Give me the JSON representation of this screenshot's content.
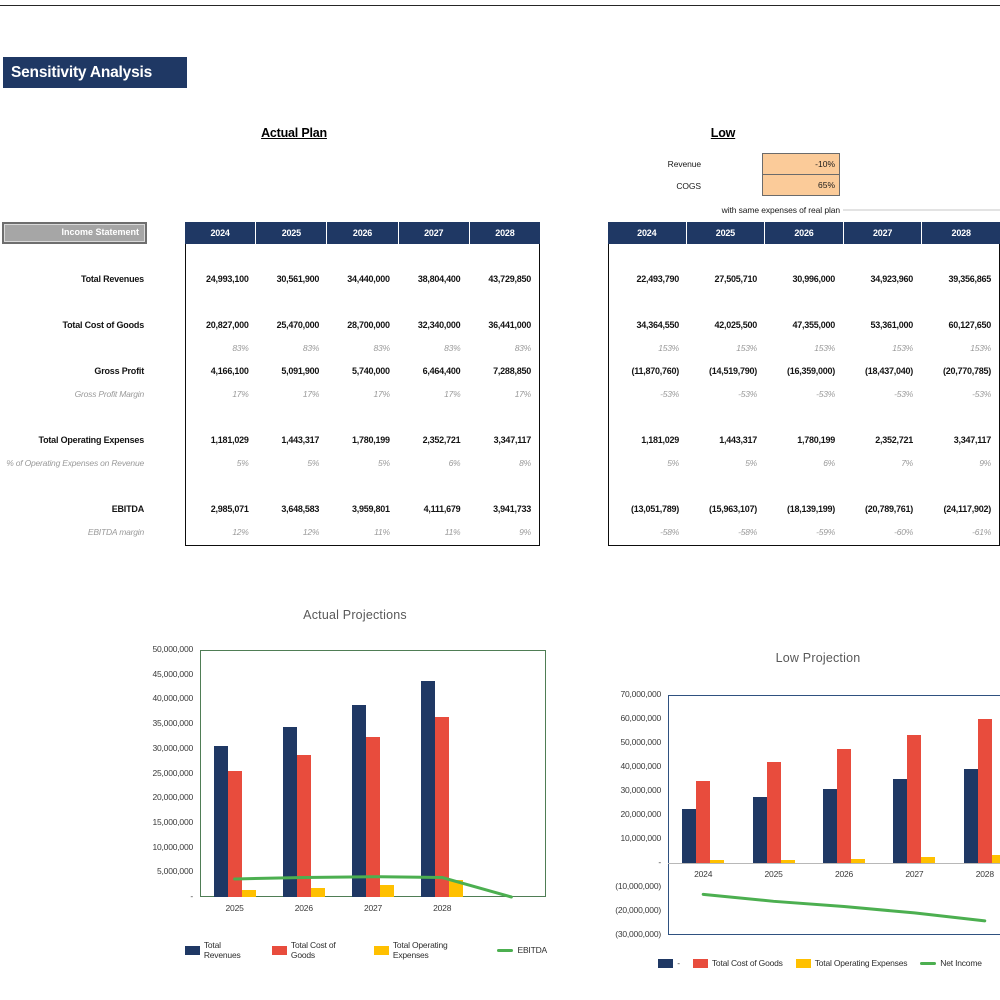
{
  "banner": {
    "title": "Sensitivity Analysis"
  },
  "scenarios": {
    "actual": {
      "heading": "Actual Plan"
    },
    "low": {
      "heading": "Low",
      "assumptions": [
        {
          "label": "Revenue",
          "value": "-10%"
        },
        {
          "label": "COGS",
          "value": "65%"
        }
      ],
      "note": "with same expenses of real plan"
    }
  },
  "income_statement": {
    "box_label": "Income Statement",
    "years": [
      "2024",
      "2025",
      "2026",
      "2027",
      "2028"
    ],
    "rows": [
      {
        "label": "Total Revenues",
        "kind": "value",
        "gap_before": false,
        "actual": [
          "24,993,100",
          "30,561,900",
          "34,440,000",
          "38,804,400",
          "43,729,850"
        ],
        "low": [
          "22,493,790",
          "27,505,710",
          "30,996,000",
          "34,923,960",
          "39,356,865"
        ]
      },
      {
        "label": "Total Cost of Goods",
        "kind": "value",
        "gap_before": true,
        "actual": [
          "20,827,000",
          "25,470,000",
          "28,700,000",
          "32,340,000",
          "36,441,000"
        ],
        "low": [
          "34,364,550",
          "42,025,500",
          "47,355,000",
          "53,361,000",
          "60,127,650"
        ]
      },
      {
        "label": "",
        "kind": "pct",
        "gap_before": false,
        "actual": [
          "83%",
          "83%",
          "83%",
          "83%",
          "83%"
        ],
        "low": [
          "153%",
          "153%",
          "153%",
          "153%",
          "153%"
        ]
      },
      {
        "label": "Gross Profit",
        "kind": "value",
        "gap_before": false,
        "actual": [
          "4,166,100",
          "5,091,900",
          "5,740,000",
          "6,464,400",
          "7,288,850"
        ],
        "low": [
          "(11,870,760)",
          "(14,519,790)",
          "(16,359,000)",
          "(18,437,040)",
          "(20,770,785)"
        ]
      },
      {
        "label": "Gross Profit Margin",
        "kind": "pct",
        "gap_before": false,
        "actual": [
          "17%",
          "17%",
          "17%",
          "17%",
          "17%"
        ],
        "low": [
          "-53%",
          "-53%",
          "-53%",
          "-53%",
          "-53%"
        ]
      },
      {
        "label": "Total Operating Expenses",
        "kind": "value",
        "gap_before": true,
        "actual": [
          "1,181,029",
          "1,443,317",
          "1,780,199",
          "2,352,721",
          "3,347,117"
        ],
        "low": [
          "1,181,029",
          "1,443,317",
          "1,780,199",
          "2,352,721",
          "3,347,117"
        ]
      },
      {
        "label": "% of Operating Expenses on Revenue",
        "kind": "pct",
        "gap_before": false,
        "actual": [
          "5%",
          "5%",
          "5%",
          "6%",
          "8%"
        ],
        "low": [
          "5%",
          "5%",
          "6%",
          "7%",
          "9%"
        ]
      },
      {
        "label": "EBITDA",
        "kind": "value",
        "gap_before": true,
        "actual": [
          "2,985,071",
          "3,648,583",
          "3,959,801",
          "4,111,679",
          "3,941,733"
        ],
        "low": [
          "(13,051,789)",
          "(15,963,107)",
          "(18,139,199)",
          "(20,789,761)",
          "(24,117,902)"
        ]
      },
      {
        "label": "EBITDA margin",
        "kind": "pct",
        "gap_before": false,
        "actual": [
          "12%",
          "12%",
          "11%",
          "11%",
          "9%"
        ],
        "low": [
          "-58%",
          "-58%",
          "-59%",
          "-60%",
          "-61%"
        ]
      }
    ]
  },
  "colors": {
    "navy": "#1F3864",
    "red": "#E84C3D",
    "yellow": "#FFC000",
    "green": "#4CAF50",
    "assumption_fill": "#FBCB99"
  },
  "chart_data": [
    {
      "type": "bar",
      "title": "Actual Projections",
      "categories": [
        "2025",
        "2026",
        "2027",
        "2028",
        ""
      ],
      "series": [
        {
          "name": "Total Revenues",
          "type": "bar",
          "color": "#1F3864",
          "values": [
            30561900,
            34440000,
            38804400,
            43729850,
            null
          ]
        },
        {
          "name": "Total Cost of Goods",
          "type": "bar",
          "color": "#E84C3D",
          "values": [
            25470000,
            28700000,
            32340000,
            36441000,
            null
          ]
        },
        {
          "name": "Total Operating Expenses",
          "type": "bar",
          "color": "#FFC000",
          "values": [
            1443317,
            1780199,
            2352721,
            3347117,
            null
          ]
        },
        {
          "name": "EBITDA",
          "type": "line",
          "color": "#4CAF50",
          "values": [
            3648583,
            3959801,
            4111679,
            3941733,
            0
          ]
        }
      ],
      "ylim": [
        0,
        50000000
      ],
      "ytick_step": 5000000,
      "grid": false,
      "legend_position": "bottom"
    },
    {
      "type": "bar",
      "title": "Low Projection",
      "categories": [
        "2024",
        "2025",
        "2026",
        "2027",
        "2028"
      ],
      "series": [
        {
          "name": "-",
          "type": "bar",
          "color": "#1F3864",
          "values": [
            22493790,
            27505710,
            30996000,
            34923960,
            39356865
          ]
        },
        {
          "name": "Total Cost of Goods",
          "type": "bar",
          "color": "#E84C3D",
          "values": [
            34364550,
            42025500,
            47355000,
            53361000,
            60127650
          ]
        },
        {
          "name": "Total Operating Expenses",
          "type": "bar",
          "color": "#FFC000",
          "values": [
            1181029,
            1443317,
            1780199,
            2352721,
            3347117
          ]
        },
        {
          "name": "Net Income",
          "type": "line",
          "color": "#4CAF50",
          "values": [
            -13051789,
            -15963107,
            -18139199,
            -20789761,
            -24117902
          ]
        }
      ],
      "ylim": [
        -30000000,
        70000000
      ],
      "ytick_step": 10000000,
      "grid": false,
      "legend_position": "bottom"
    }
  ]
}
